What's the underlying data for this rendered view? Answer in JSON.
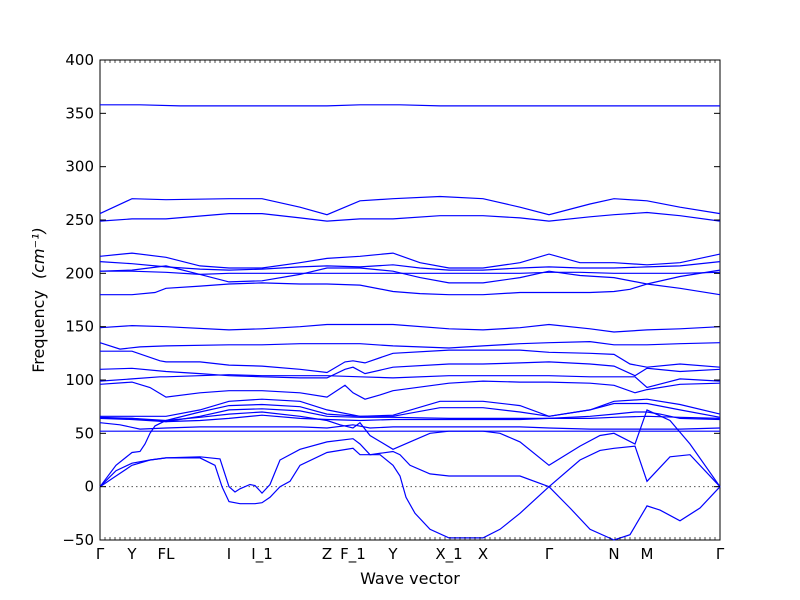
{
  "chart_data": {
    "type": "line",
    "title": "",
    "xlabel": "Wave vector",
    "ylabel": "Frequency",
    "ylabel_unit": "(cm⁻¹)",
    "ylim": [
      -50,
      400
    ],
    "yticks": [
      -50,
      0,
      50,
      100,
      150,
      200,
      250,
      300,
      350,
      400
    ],
    "xlim": [
      0,
      620
    ],
    "high_symmetry_points": [
      {
        "label": "Γ",
        "x": 0
      },
      {
        "label": "Y",
        "x": 32
      },
      {
        "label": "FL",
        "x": 66
      },
      {
        "label": "I",
        "x": 129
      },
      {
        "label": "I_1",
        "x": 162
      },
      {
        "label": "Z",
        "x": 227
      },
      {
        "label": "F_1",
        "x": 253
      },
      {
        "label": "Y",
        "x": 293
      },
      {
        "label": "X_1",
        "x": 349
      },
      {
        "label": "X",
        "x": 383
      },
      {
        "label": "Γ",
        "x": 449
      },
      {
        "label": "N",
        "x": 514
      },
      {
        "label": "M",
        "x": 547
      },
      {
        "label": "Γ",
        "x": 620
      }
    ],
    "zero_line": true,
    "grid": false,
    "line_color": "#0000ff",
    "series": [
      {
        "x": [
          0,
          10,
          40,
          80,
          130,
          170,
          200,
          227,
          260,
          300,
          340,
          383,
          420,
          449,
          480,
          514,
          547,
          580,
          620
        ],
        "y": [
          358,
          358,
          358,
          357,
          357,
          357,
          357,
          357,
          358,
          358,
          357,
          357,
          357,
          357,
          357,
          357,
          357,
          357,
          357
        ]
      },
      {
        "x": [
          0,
          32,
          66,
          129,
          162,
          200,
          227,
          260,
          293,
          340,
          383,
          420,
          449,
          490,
          514,
          547,
          580,
          620
        ],
        "y": [
          256,
          270,
          269,
          270,
          270,
          262,
          255,
          268,
          270,
          272,
          270,
          262,
          255,
          265,
          270,
          268,
          262,
          256
        ]
      },
      {
        "x": [
          0,
          32,
          66,
          129,
          162,
          200,
          227,
          260,
          293,
          340,
          383,
          420,
          449,
          490,
          514,
          547,
          580,
          620
        ],
        "y": [
          249,
          251,
          251,
          256,
          256,
          252,
          249,
          251,
          251,
          254,
          254,
          252,
          249,
          253,
          255,
          257,
          254,
          249
        ]
      },
      {
        "x": [
          0,
          32,
          66,
          100,
          129,
          162,
          200,
          227,
          260,
          293,
          320,
          349,
          383,
          420,
          449,
          480,
          514,
          547,
          580,
          620
        ],
        "y": [
          216,
          219,
          215,
          207,
          205,
          205,
          210,
          214,
          216,
          219,
          210,
          205,
          205,
          210,
          218,
          210,
          210,
          208,
          210,
          218
        ]
      },
      {
        "x": [
          0,
          32,
          66,
          100,
          129,
          162,
          200,
          227,
          260,
          293,
          320,
          349,
          383,
          420,
          449,
          480,
          514,
          547,
          580,
          620
        ],
        "y": [
          211,
          209,
          206,
          204,
          203,
          204,
          206,
          207,
          206,
          208,
          205,
          203,
          203,
          205,
          206,
          205,
          205,
          206,
          207,
          211
        ]
      },
      {
        "x": [
          0,
          32,
          66,
          100,
          129,
          162,
          200,
          227,
          260,
          293,
          320,
          349,
          383,
          420,
          449,
          480,
          514,
          547,
          580,
          620
        ],
        "y": [
          202,
          203,
          207,
          199,
          192,
          193,
          199,
          205,
          205,
          202,
          196,
          191,
          191,
          196,
          202,
          198,
          196,
          190,
          197,
          203
        ]
      },
      {
        "x": [
          0,
          32,
          66,
          100,
          129,
          162,
          200,
          227,
          260,
          293,
          349,
          383,
          420,
          449,
          480,
          514,
          547,
          580,
          620
        ],
        "y": [
          202,
          202,
          201,
          199,
          200,
          200,
          200,
          200,
          200,
          200,
          200,
          200,
          200,
          201,
          201,
          200,
          200,
          200,
          201
        ]
      },
      {
        "x": [
          0,
          32,
          55,
          66,
          100,
          129,
          162,
          200,
          227,
          260,
          293,
          320,
          349,
          383,
          420,
          449,
          490,
          514,
          530,
          547,
          580,
          620
        ],
        "y": [
          180,
          180,
          182,
          186,
          188,
          190,
          191,
          190,
          190,
          189,
          183,
          181,
          180,
          180,
          182,
          182,
          182,
          183,
          185,
          190,
          186,
          180
        ]
      },
      {
        "x": [
          0,
          32,
          66,
          129,
          162,
          200,
          227,
          260,
          293,
          349,
          383,
          420,
          449,
          490,
          514,
          547,
          580,
          620
        ],
        "y": [
          149,
          151,
          150,
          147,
          148,
          150,
          152,
          152,
          152,
          148,
          147,
          149,
          152,
          148,
          145,
          147,
          148,
          150
        ]
      },
      {
        "x": [
          0,
          20,
          40,
          66,
          129,
          162,
          200,
          227,
          260,
          293,
          349,
          383,
          420,
          449,
          490,
          514,
          547,
          580,
          620
        ],
        "y": [
          135,
          129,
          131,
          132,
          133,
          133,
          134,
          134,
          134,
          132,
          130,
          132,
          134,
          135,
          136,
          133,
          133,
          134,
          135
        ]
      },
      {
        "x": [
          0,
          32,
          60,
          66,
          100,
          129,
          162,
          200,
          227,
          245,
          253,
          265,
          293,
          349,
          383,
          420,
          449,
          490,
          514,
          530,
          547,
          580,
          620
        ],
        "y": [
          127,
          127,
          118,
          117,
          117,
          114,
          113,
          110,
          107,
          117,
          118,
          116,
          125,
          128,
          128,
          128,
          126,
          125,
          124,
          115,
          112,
          115,
          112
        ]
      },
      {
        "x": [
          0,
          32,
          66,
          100,
          129,
          162,
          200,
          227,
          245,
          253,
          265,
          293,
          349,
          383,
          420,
          449,
          490,
          514,
          535,
          547,
          580,
          620
        ],
        "y": [
          110,
          111,
          108,
          106,
          104,
          103,
          102,
          102,
          110,
          112,
          106,
          112,
          115,
          115,
          116,
          117,
          115,
          113,
          104,
          111,
          108,
          110
        ]
      },
      {
        "x": [
          0,
          32,
          60,
          66,
          129,
          162,
          200,
          227,
          260,
          293,
          349,
          383,
          449,
          490,
          514,
          535,
          547,
          580,
          620
        ],
        "y": [
          99,
          101,
          103,
          103,
          105,
          104,
          104,
          104,
          103,
          102,
          104,
          104,
          104,
          103,
          103,
          103,
          93,
          101,
          99
        ]
      },
      {
        "x": [
          0,
          32,
          50,
          66,
          100,
          129,
          162,
          200,
          227,
          245,
          253,
          265,
          280,
          293,
          349,
          383,
          420,
          449,
          490,
          514,
          535,
          547,
          580,
          620
        ],
        "y": [
          96,
          98,
          93,
          84,
          88,
          90,
          90,
          88,
          84,
          95,
          88,
          82,
          86,
          90,
          97,
          99,
          98,
          98,
          97,
          95,
          88,
          91,
          96,
          97
        ]
      },
      {
        "x": [
          0,
          32,
          60,
          66,
          100,
          129,
          162,
          200,
          227,
          260,
          293,
          340,
          383,
          420,
          449,
          490,
          514,
          547,
          580,
          620
        ],
        "y": [
          66,
          66,
          66,
          66,
          72,
          80,
          82,
          80,
          72,
          66,
          67,
          80,
          80,
          76,
          66,
          72,
          80,
          82,
          77,
          68
        ]
      },
      {
        "x": [
          0,
          32,
          66,
          100,
          129,
          162,
          200,
          227,
          260,
          293,
          340,
          383,
          420,
          449,
          490,
          514,
          547,
          580,
          620
        ],
        "y": [
          65,
          64,
          62,
          70,
          76,
          77,
          75,
          68,
          66,
          66,
          74,
          74,
          70,
          66,
          72,
          78,
          78,
          72,
          65
        ]
      },
      {
        "x": [
          0,
          32,
          66,
          100,
          129,
          162,
          200,
          227,
          260,
          293,
          349,
          383,
          420,
          449,
          490,
          514,
          547,
          580,
          620
        ],
        "y": [
          64,
          64,
          61,
          66,
          72,
          73,
          71,
          66,
          65,
          65,
          64,
          64,
          64,
          64,
          64,
          65,
          66,
          65,
          64
        ]
      },
      {
        "x": [
          0,
          32,
          66,
          100,
          129,
          162,
          200,
          227,
          260,
          293,
          349,
          383,
          420,
          449,
          490,
          514,
          535,
          547,
          560,
          580,
          620
        ],
        "y": [
          64,
          63,
          61,
          62,
          64,
          67,
          64,
          63,
          62,
          63,
          63,
          63,
          63,
          64,
          66,
          68,
          70,
          70,
          68,
          64,
          63
        ]
      },
      {
        "x": [
          0,
          20,
          40,
          66,
          100,
          129,
          162,
          200,
          227,
          253,
          270,
          293,
          349,
          383,
          420,
          449,
          490,
          514,
          547,
          580,
          620
        ],
        "y": [
          60,
          58,
          54,
          55,
          56,
          56,
          56,
          56,
          55,
          58,
          55,
          56,
          56,
          56,
          56,
          55,
          54,
          54,
          54,
          54,
          55
        ]
      },
      {
        "x": [
          0,
          32,
          66,
          100,
          129,
          162,
          200,
          227,
          253,
          293,
          349,
          383,
          420,
          449,
          490,
          514,
          547,
          580,
          620
        ],
        "y": [
          52,
          52,
          52,
          52,
          52,
          52,
          52,
          52,
          52,
          52,
          52,
          52,
          52,
          52,
          52,
          52,
          52,
          52,
          52
        ]
      },
      {
        "x": [
          0,
          16,
          32,
          40,
          45,
          50,
          55,
          66,
          100,
          129,
          162,
          200,
          227,
          240,
          253,
          260,
          270,
          293,
          310,
          330,
          349,
          383,
          400,
          420,
          449,
          480,
          500,
          514,
          535,
          547,
          570,
          590,
          620
        ],
        "y": [
          0,
          20,
          32,
          33,
          40,
          50,
          57,
          62,
          65,
          68,
          70,
          66,
          62,
          58,
          55,
          60,
          48,
          35,
          42,
          50,
          52,
          52,
          50,
          42,
          20,
          38,
          48,
          50,
          40,
          72,
          62,
          40,
          0
        ]
      },
      {
        "x": [
          0,
          16,
          32,
          50,
          66,
          100,
          120,
          129,
          135,
          140,
          150,
          155,
          160,
          162,
          170,
          180,
          200,
          227,
          253,
          260,
          270,
          293,
          300,
          310,
          330,
          349,
          383,
          400,
          420,
          449,
          480,
          500,
          514,
          535,
          547,
          570,
          590,
          620
        ],
        "y": [
          0,
          15,
          22,
          25,
          27,
          28,
          26,
          0,
          -5,
          -2,
          2,
          1,
          -4,
          -6,
          2,
          25,
          35,
          42,
          45,
          40,
          30,
          33,
          30,
          20,
          12,
          10,
          10,
          10,
          10,
          0,
          25,
          34,
          36,
          38,
          5,
          28,
          30,
          0
        ]
      },
      {
        "x": [
          0,
          16,
          32,
          50,
          66,
          100,
          115,
          122,
          129,
          140,
          155,
          162,
          170,
          180,
          190,
          200,
          227,
          240,
          253,
          260,
          280,
          293,
          300,
          306,
          315,
          330,
          349,
          383,
          400,
          420,
          449,
          470,
          490,
          514,
          530,
          547,
          560,
          580,
          600,
          620
        ],
        "y": [
          0,
          10,
          20,
          25,
          27,
          27,
          20,
          0,
          -14,
          -16,
          -16,
          -15,
          -10,
          0,
          5,
          20,
          32,
          34,
          36,
          30,
          30,
          20,
          10,
          -10,
          -25,
          -40,
          -48,
          -48,
          -40,
          -25,
          0,
          -20,
          -40,
          -50,
          -45,
          -18,
          -22,
          -32,
          -20,
          0
        ]
      }
    ]
  }
}
